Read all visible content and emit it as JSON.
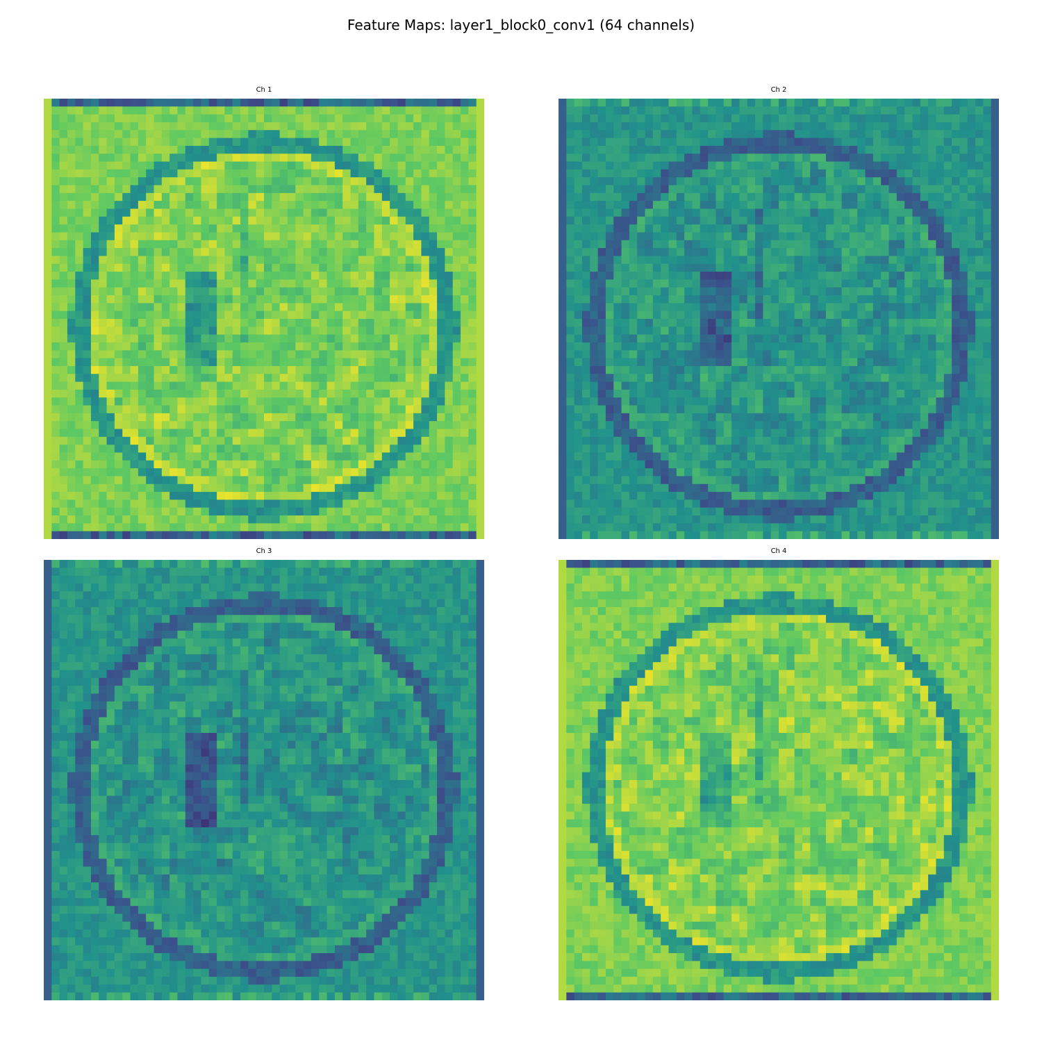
{
  "figure": {
    "title": "Feature Maps: layer1_block0_conv1 (64 channels)"
  },
  "chart_data": {
    "type": "heatmap",
    "title": "Feature Maps: layer1_block0_conv1 (64 channels)",
    "colormap": "viridis",
    "grid": false,
    "axes": "off",
    "panels": [
      {
        "title": "Ch 1",
        "style": "bright"
      },
      {
        "title": "Ch 2",
        "style": "dark"
      },
      {
        "title": "Ch 3",
        "style": "dark"
      },
      {
        "title": "Ch 4",
        "style": "bright"
      }
    ]
  }
}
